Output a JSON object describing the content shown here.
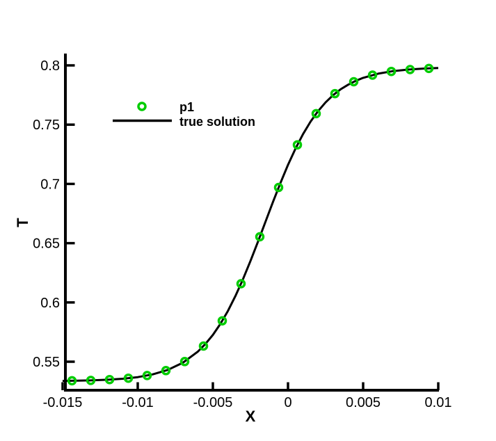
{
  "colors": {
    "marker_green": "#00CC00",
    "line_black": "#000000",
    "background": "#FFFFFF",
    "text": "#000000"
  },
  "chart_data": {
    "type": "line",
    "title": "",
    "xlabel": "X",
    "ylabel": "T",
    "xlim": [
      -0.015,
      0.01
    ],
    "ylim": [
      0.527,
      0.809
    ],
    "grid": false,
    "x_ticks": {
      "values": [
        -0.015,
        -0.01,
        -0.005,
        0,
        0.005,
        0.01
      ],
      "labels": [
        "-0.015",
        "-0.01",
        "-0.005",
        "0",
        "0.005",
        "0.01"
      ]
    },
    "y_ticks": {
      "values": [
        0.55,
        0.6,
        0.65,
        0.7,
        0.75,
        0.8
      ],
      "labels": [
        "0.55",
        "0.6",
        "0.65",
        "0.7",
        "0.75",
        "0.8"
      ]
    },
    "legend": {
      "position": "upper-left-inside",
      "entries": [
        {
          "label": "p1",
          "type": "marker",
          "marker": "open-circle",
          "color": "#00CC00"
        },
        {
          "label": "true solution",
          "type": "line",
          "color": "#000000"
        }
      ]
    },
    "series": [
      {
        "name": "p1",
        "type": "scatter",
        "marker": "open-circle",
        "color": "#00CC00",
        "points": [
          [
            -0.014375,
            0.5339
          ],
          [
            -0.013125,
            0.5342
          ],
          [
            -0.011875,
            0.5349
          ],
          [
            -0.010625,
            0.5361
          ],
          [
            -0.009375,
            0.5383
          ],
          [
            -0.008125,
            0.5425
          ],
          [
            -0.006875,
            0.5501
          ],
          [
            -0.005625,
            0.5632
          ],
          [
            -0.004375,
            0.5845
          ],
          [
            -0.003125,
            0.6158
          ],
          [
            -0.001875,
            0.6554
          ],
          [
            -0.000625,
            0.697
          ],
          [
            0.000625,
            0.733
          ],
          [
            0.001875,
            0.7593
          ],
          [
            0.003125,
            0.7762
          ],
          [
            0.004375,
            0.7862
          ],
          [
            0.005625,
            0.7918
          ],
          [
            0.006875,
            0.7949
          ],
          [
            0.008125,
            0.7965
          ],
          [
            0.009375,
            0.7974
          ]
        ]
      },
      {
        "name": "true solution",
        "type": "line",
        "color": "#000000",
        "points": [
          [
            -0.015,
            0.5338
          ],
          [
            -0.014,
            0.534
          ],
          [
            -0.013,
            0.5343
          ],
          [
            -0.012,
            0.5348
          ],
          [
            -0.011,
            0.5356
          ],
          [
            -0.01,
            0.537
          ],
          [
            -0.009,
            0.5393
          ],
          [
            -0.008,
            0.5431
          ],
          [
            -0.007,
            0.5491
          ],
          [
            -0.006,
            0.5585
          ],
          [
            -0.0055,
            0.5649
          ],
          [
            -0.005,
            0.5726
          ],
          [
            -0.0045,
            0.5819
          ],
          [
            -0.004,
            0.5928
          ],
          [
            -0.0035,
            0.6054
          ],
          [
            -0.003,
            0.6195
          ],
          [
            -0.0025,
            0.6349
          ],
          [
            -0.002,
            0.6512
          ],
          [
            -0.0015,
            0.668
          ],
          [
            -0.001,
            0.6848
          ],
          [
            -0.0005,
            0.7009
          ],
          [
            0,
            0.7161
          ],
          [
            0.0005,
            0.7298
          ],
          [
            0.001,
            0.742
          ],
          [
            0.0015,
            0.7525
          ],
          [
            0.002,
            0.7614
          ],
          [
            0.0025,
            0.7688
          ],
          [
            0.003,
            0.7749
          ],
          [
            0.0035,
            0.7798
          ],
          [
            0.004,
            0.7837
          ],
          [
            0.0045,
            0.7869
          ],
          [
            0.005,
            0.7895
          ],
          [
            0.006,
            0.793
          ],
          [
            0.007,
            0.7952
          ],
          [
            0.008,
            0.7965
          ],
          [
            0.009,
            0.7973
          ],
          [
            0.01,
            0.7978
          ]
        ]
      }
    ]
  }
}
